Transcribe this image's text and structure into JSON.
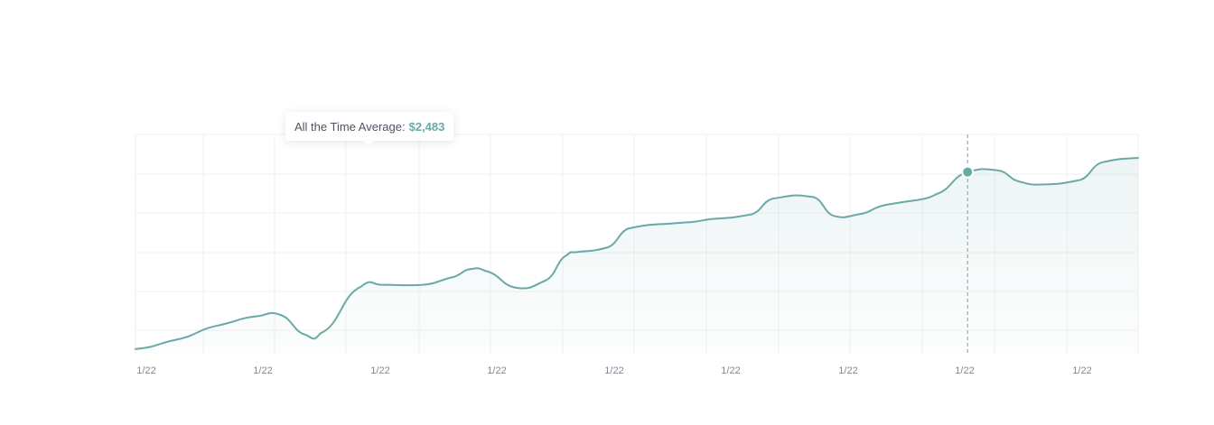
{
  "tooltip": {
    "label": "All the Time Average:",
    "value": "$2,483"
  },
  "colors": {
    "line": "#6aa9a6",
    "grid": "#eef1f2",
    "tick_label": "#7d8a96"
  },
  "chart_data": {
    "type": "area",
    "title": "",
    "xlabel": "",
    "ylabel": "",
    "x_tick_labels": [
      "1/22",
      "1/22",
      "1/22",
      "1/22",
      "1/22",
      "1/22",
      "1/22",
      "1/22",
      "1/22"
    ],
    "x": [
      0,
      2,
      4,
      6,
      7,
      8.3,
      9,
      11,
      12,
      14,
      15.5,
      16.3,
      17,
      18.6,
      20,
      21,
      21.5,
      23,
      24,
      26,
      27,
      28,
      30,
      31,
      33,
      34,
      35.2,
      36.5,
      38,
      39,
      40.5,
      42,
      43,
      44,
      46,
      47,
      48.8
    ],
    "y": [
      0.3,
      0.9,
      1.8,
      2.4,
      2.5,
      1.2,
      1.3,
      4.3,
      4.4,
      4.4,
      4.9,
      5.4,
      5.3,
      4.2,
      4.7,
      6.3,
      6.5,
      6.8,
      8.0,
      8.3,
      8.4,
      8.6,
      8.9,
      9.9,
      10.0,
      8.8,
      8.9,
      9.5,
      9.8,
      10.2,
      11.6,
      11.7,
      11.0,
      10.8,
      11.1,
      12.2,
      12.5
    ],
    "ylim": [
      0,
      14
    ],
    "xlim": [
      0,
      48.8
    ],
    "grid": true,
    "highlight_x": 40.5,
    "legend": "none"
  }
}
